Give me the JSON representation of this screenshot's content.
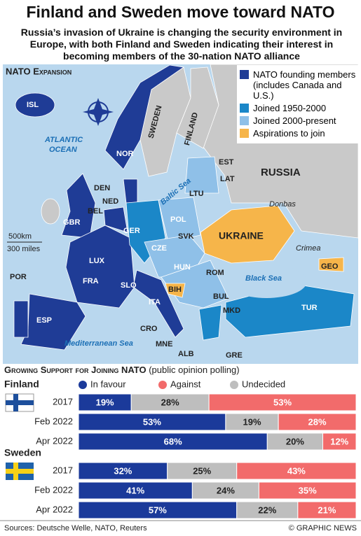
{
  "header": {
    "title": "Finland and Sweden move toward NATO",
    "subtitle": "Russia’s invasion of Ukraine is changing the security environment in Europe, with both Finland and Sweden indicating their interest in becoming members of the 30-nation NATO alliance"
  },
  "map": {
    "title": "NATO Expansion",
    "legend": [
      {
        "label": "NATO founding members (includes Canada and U.S.)",
        "color": "#1f3c96"
      },
      {
        "label": "Joined 1950-2000",
        "color": "#1b87c8"
      },
      {
        "label": "Joined 2000-present",
        "color": "#8fc0e8"
      },
      {
        "label": "Aspirations to join",
        "color": "#f6b54a"
      }
    ],
    "labels": [
      "ISL",
      "NOR",
      "SWEDEN",
      "FINLAND",
      "EST",
      "LAT",
      "LTU",
      "RUSSIA",
      "DEN",
      "NED",
      "BEL",
      "GBR",
      "GER",
      "POL",
      "CZE",
      "SVK",
      "LUX",
      "FRA",
      "HUN",
      "ROM",
      "UKRAINE",
      "Donbas",
      "Crimea",
      "GEO",
      "SLO",
      "CRO",
      "BIH",
      "ITA",
      "ALB",
      "MNE",
      "BUL",
      "MKD",
      "TUR",
      "GRE",
      "POR",
      "ESP"
    ],
    "seas": [
      "ATLANTIC",
      "OCEAN",
      "Baltic Sea",
      "Black Sea",
      "Mediterranean Sea"
    ],
    "scale": [
      "500km",
      "300 miles"
    ]
  },
  "chart_data": {
    "type": "bar",
    "title": "Growing Support for Joining NATO",
    "subtitle": "(public opinion polling)",
    "xlim": [
      0,
      100
    ],
    "series": [
      {
        "name": "In favour",
        "color": "#1b3a9a"
      },
      {
        "name": "Against",
        "color": "#f26b6b"
      },
      {
        "name": "Undecided",
        "color": "#bebebe"
      }
    ],
    "groups": [
      {
        "name": "Finland",
        "categories": [
          "2017",
          "Feb 2022",
          "Apr 2022"
        ],
        "series": [
          {
            "values": [
              19,
              53,
              68
            ],
            "value_labels": [
              "19%",
              "53%",
              "68%"
            ]
          },
          {
            "values": [
              53,
              28,
              12
            ],
            "value_labels": [
              "53%",
              "28%",
              "12%"
            ]
          },
          {
            "values": [
              28,
              19,
              20
            ],
            "value_labels": [
              "28%",
              "19%",
              "20%"
            ]
          }
        ]
      },
      {
        "name": "Sweden",
        "categories": [
          "2017",
          "Feb 2022",
          "Apr 2022"
        ],
        "series": [
          {
            "values": [
              32,
              41,
              57
            ],
            "value_labels": [
              "32%",
              "41%",
              "57%"
            ]
          },
          {
            "values": [
              43,
              35,
              21
            ],
            "value_labels": [
              "43%",
              "35%",
              "21%"
            ]
          },
          {
            "values": [
              25,
              24,
              22
            ],
            "value_labels": [
              "25%",
              "24%",
              "22%"
            ]
          }
        ]
      }
    ]
  },
  "footer": {
    "source": "Sources: Deutsche Welle, NATO, Reuters",
    "credit": "© GRAPHIC NEWS"
  }
}
